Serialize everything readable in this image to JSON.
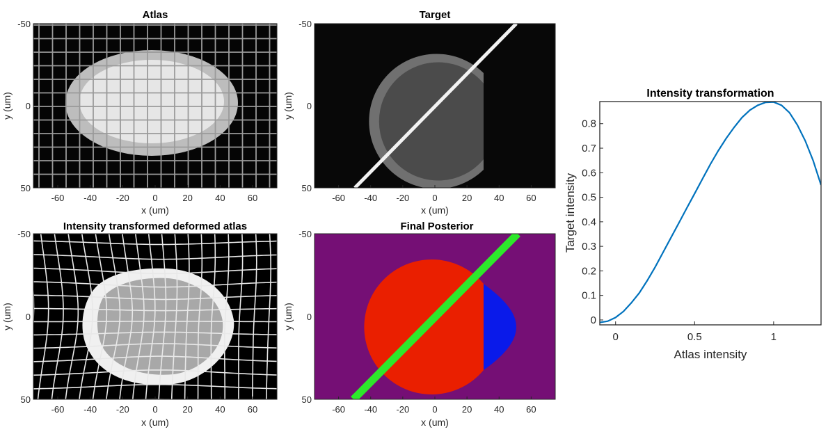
{
  "chart_data": [
    {
      "type": "image",
      "title": "Atlas",
      "xlabel": "x (um)",
      "ylabel": "y (um)",
      "xlim": [
        -75,
        75
      ],
      "ylim": [
        50,
        -50
      ],
      "xticks": [
        "-60",
        "-40",
        "-20",
        "0",
        "20",
        "40",
        "60"
      ],
      "yticks": [
        "-50",
        "0",
        "50"
      ],
      "content": "bright ellipse on black background with regular grid overlay",
      "ellipse": {
        "cx": -2,
        "cy": -3,
        "rx": 53,
        "ry": 32
      },
      "grid": "regular",
      "colors": {
        "background": "#050505",
        "shape": "#bdbdbd",
        "inner": "#e6e6e6",
        "grid": "#9a9a9a"
      }
    },
    {
      "type": "image",
      "title": "Target",
      "xlabel": "x (um)",
      "ylabel": "y (um)",
      "xlim": [
        -75,
        75
      ],
      "ylim": [
        50,
        -50
      ],
      "xticks": [
        "-60",
        "-40",
        "-20",
        "0",
        "20",
        "40",
        "60"
      ],
      "yticks": [
        "-50",
        "0",
        "50"
      ],
      "content": "gray disc truncated at x=30 with a bright diagonal line",
      "circle": {
        "cx": 0,
        "cy": 5,
        "r": 42
      },
      "cut_x": 30,
      "line": {
        "x1": -50,
        "y1": 50,
        "x2": 50,
        "y2": -50
      },
      "colors": {
        "background": "#080808",
        "ring": "#707070",
        "disc": "#4b4b4b",
        "line": "#f2f2f2"
      }
    },
    {
      "type": "image",
      "title": "Intensity transformed deformed atlas",
      "xlabel": "x (um)",
      "ylabel": "y (um)",
      "xlim": [
        -75,
        75
      ],
      "ylim": [
        50,
        -50
      ],
      "xticks": [
        "-60",
        "-40",
        "-20",
        "0",
        "20",
        "40",
        "60"
      ],
      "yticks": [
        "-50",
        "0",
        "50"
      ],
      "content": "deformed bright ellipse on black background with warped white grid",
      "ellipse": {
        "cx": 2,
        "cy": 4,
        "rx": 46,
        "ry": 37
      },
      "grid": "deformed",
      "colors": {
        "background": "#000000",
        "shape": "#f0f0f0",
        "inner": "#a8a8a8",
        "grid": "#e8e8e8"
      }
    },
    {
      "type": "image",
      "title": "Final Posterior",
      "xlabel": "x (um)",
      "ylabel": "y (um)",
      "xlim": [
        -75,
        75
      ],
      "ylim": [
        50,
        -50
      ],
      "xticks": [
        "-60",
        "-40",
        "-20",
        "0",
        "20",
        "40",
        "60"
      ],
      "yticks": [
        "-50",
        "0",
        "50"
      ],
      "content": "classification map: purple background, red disc, blue truncated segment, green diagonal line",
      "circle": {
        "cx": 0,
        "cy": 5,
        "r": 42
      },
      "cut_x": 30,
      "line": {
        "x1": -50,
        "y1": 50,
        "x2": 50,
        "y2": -50
      },
      "colors": {
        "background": "#750f75",
        "disc": "#ea1f00",
        "segment": "#0a1aea",
        "line": "#2de82b"
      }
    },
    {
      "type": "line",
      "title": "Intensity transformation",
      "xlabel": "Atlas intensity",
      "ylabel": "Target intensity",
      "xlim": [
        -0.1,
        1.3
      ],
      "ylim": [
        -0.02,
        0.89
      ],
      "xticks": [
        "0",
        "0.5",
        "1"
      ],
      "yticks": [
        "0",
        "0.1",
        "0.2",
        "0.3",
        "0.4",
        "0.5",
        "0.6",
        "0.7",
        "0.8"
      ],
      "series": [
        {
          "color": "#0072bd",
          "x": [
            -0.1,
            -0.05,
            0,
            0.05,
            0.1,
            0.15,
            0.2,
            0.25,
            0.3,
            0.35,
            0.4,
            0.45,
            0.5,
            0.55,
            0.6,
            0.65,
            0.7,
            0.75,
            0.8,
            0.85,
            0.9,
            0.95,
            1.0,
            1.05,
            1.1,
            1.15,
            1.2,
            1.25,
            1.3
          ],
          "y": [
            -0.01,
            -0.005,
            0.01,
            0.035,
            0.07,
            0.11,
            0.16,
            0.215,
            0.275,
            0.335,
            0.395,
            0.455,
            0.515,
            0.575,
            0.635,
            0.69,
            0.74,
            0.785,
            0.825,
            0.855,
            0.875,
            0.887,
            0.888,
            0.875,
            0.845,
            0.795,
            0.73,
            0.65,
            0.55
          ]
        }
      ]
    }
  ]
}
